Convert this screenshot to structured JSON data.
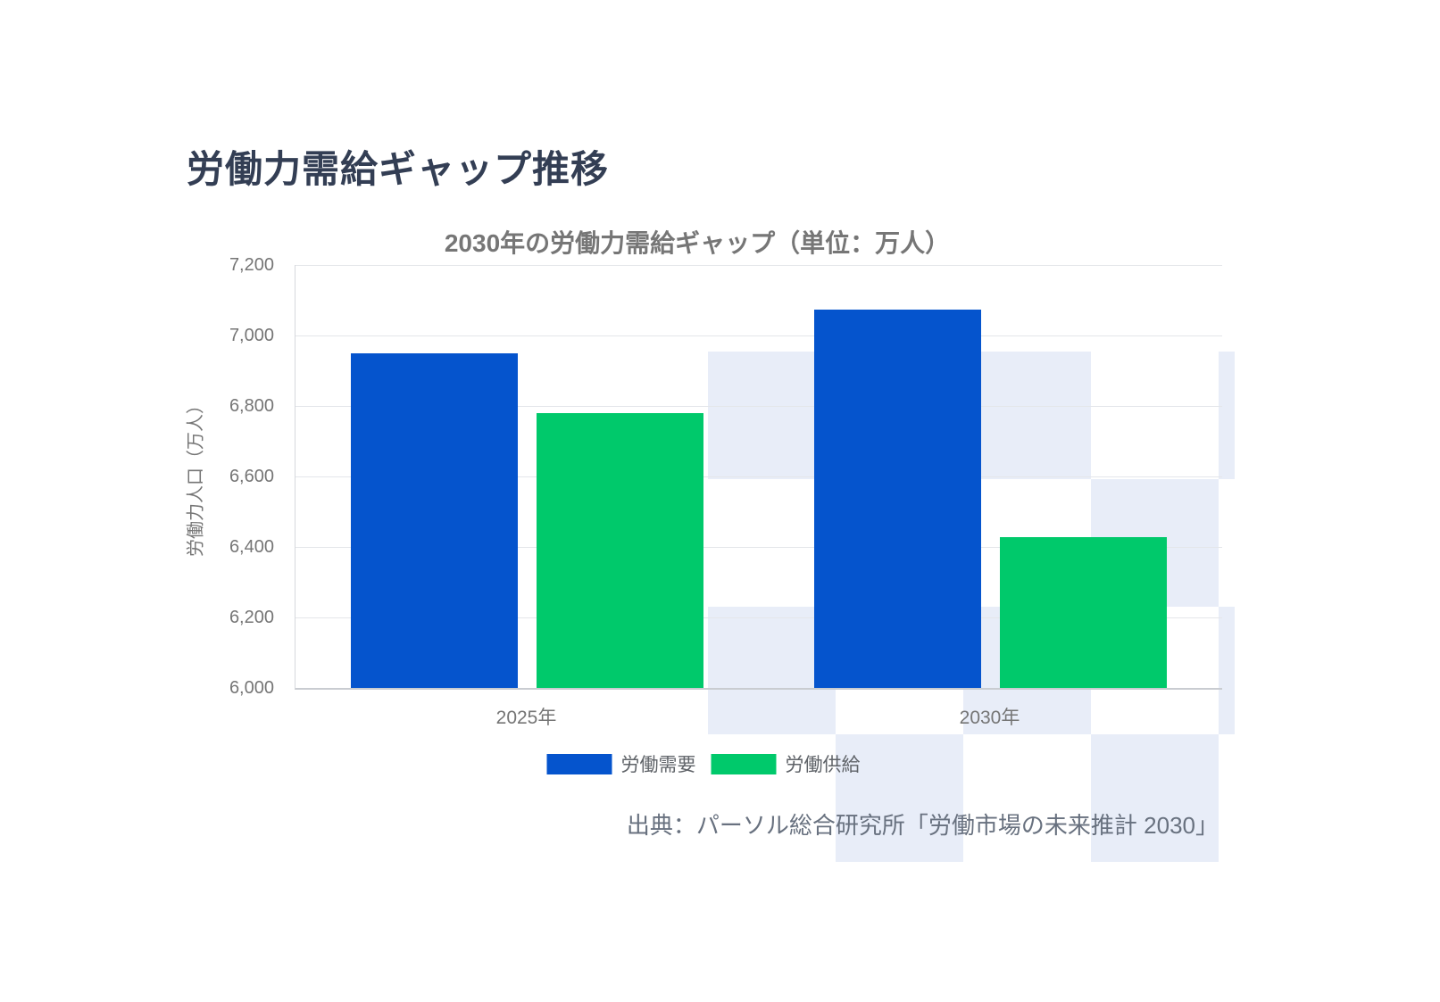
{
  "page": {
    "title": "労働力需給ギャップ推移"
  },
  "chart": {
    "title": "2030年の労働力需給ギャップ（単位：万人）",
    "y_axis_title": "労働力人口（万人）",
    "source": "出典：パーソル総合研究所「労働市場の未来推計 2030」"
  },
  "chart_data": {
    "type": "bar",
    "title": "2030年の労働力需給ギャップ（単位：万人）",
    "categories": [
      "2025年",
      "2030年"
    ],
    "series": [
      {
        "name": "労働需要",
        "color": "#0554cd",
        "values": [
          6950,
          7073
        ]
      },
      {
        "name": "労働供給",
        "color": "#00c96b",
        "values": [
          6780,
          6429
        ]
      }
    ],
    "xlabel": "",
    "ylabel": "労働力人口（万人）",
    "ylim": [
      6000,
      7200
    ],
    "ytick_step": 200,
    "ytick_labels": [
      "7,200",
      "7,000",
      "6,800",
      "6,600",
      "6,400",
      "6,200",
      "6,000"
    ],
    "grid": true,
    "legend_position": "bottom"
  },
  "colors": {
    "demand_blue": "#0554cd",
    "supply_green": "#00c96b",
    "watermark_light": "#e8edf8",
    "gridline": "#e4e6ea",
    "axis_line": "#c9ccd1",
    "page_title_text": "#333e54",
    "muted_text": "#757575",
    "source_text": "#68717f"
  }
}
